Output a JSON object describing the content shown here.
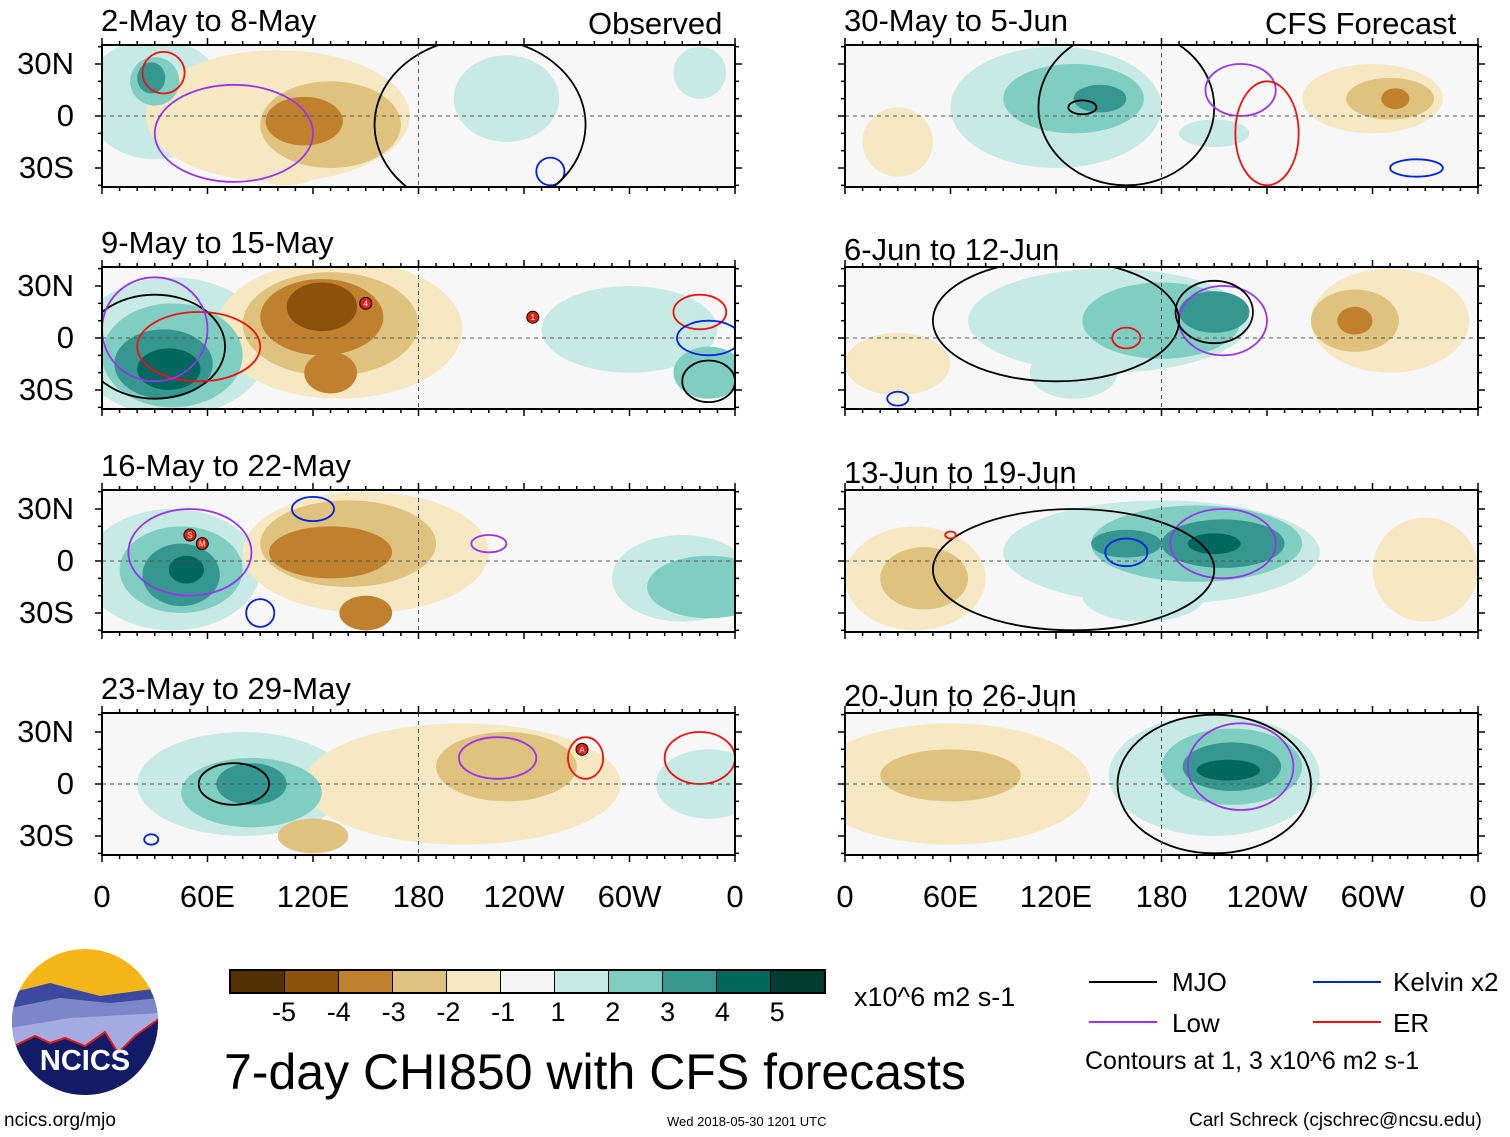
{
  "headers": {
    "observed": "Observed",
    "forecast": "CFS Forecast"
  },
  "lat_labels": [
    "30N",
    "0",
    "30S"
  ],
  "lon_labels": [
    "0",
    "60E",
    "120E",
    "180",
    "120W",
    "60W",
    "0"
  ],
  "panels": [
    {
      "title": "2-May to 8-May",
      "features": [
        [
          30,
          10,
          40,
          35,
          1
        ],
        [
          100,
          0,
          75,
          38,
          -1
        ],
        [
          130,
          -5,
          40,
          25,
          -2
        ],
        [
          115,
          -3,
          22,
          14,
          -3
        ],
        [
          30,
          20,
          14,
          14,
          2
        ],
        [
          28,
          22,
          8,
          9,
          3
        ],
        [
          230,
          10,
          30,
          25,
          1
        ],
        [
          340,
          25,
          15,
          15,
          1
        ],
        [
          105,
          -30,
          20,
          10,
          -1
        ]
      ],
      "contours": [
        [
          75,
          -10,
          45,
          28,
          "low"
        ],
        [
          35,
          25,
          12,
          12,
          "er"
        ],
        [
          255,
          -32,
          8,
          8,
          "kelvin"
        ],
        [
          215,
          -5,
          60,
          50,
          "mjo"
        ]
      ],
      "storms": []
    },
    {
      "title": "9-May to 15-May",
      "features": [
        [
          40,
          -5,
          55,
          40,
          1
        ],
        [
          40,
          -10,
          40,
          30,
          2
        ],
        [
          35,
          -15,
          28,
          20,
          3
        ],
        [
          38,
          -18,
          18,
          12,
          4
        ],
        [
          135,
          5,
          70,
          40,
          -1
        ],
        [
          130,
          8,
          50,
          30,
          -2
        ],
        [
          125,
          12,
          35,
          22,
          -3
        ],
        [
          125,
          18,
          20,
          14,
          -4
        ],
        [
          130,
          -20,
          15,
          12,
          -3
        ],
        [
          300,
          5,
          50,
          25,
          1
        ],
        [
          345,
          -20,
          20,
          15,
          2
        ]
      ],
      "contours": [
        [
          30,
          -5,
          40,
          30,
          "mjo"
        ],
        [
          55,
          -5,
          35,
          20,
          "er"
        ],
        [
          30,
          5,
          30,
          30,
          "low"
        ],
        [
          340,
          15,
          15,
          10,
          "er"
        ],
        [
          345,
          0,
          18,
          10,
          "kelvin"
        ],
        [
          345,
          -25,
          15,
          12,
          "mjo"
        ]
      ],
      "storms": [
        [
          150,
          20,
          "4"
        ],
        [
          245,
          12,
          "1"
        ]
      ]
    },
    {
      "title": "16-May to 22-May",
      "features": [
        [
          40,
          -5,
          50,
          35,
          1
        ],
        [
          45,
          -5,
          35,
          25,
          2
        ],
        [
          45,
          -8,
          22,
          18,
          3
        ],
        [
          48,
          -5,
          10,
          8,
          4
        ],
        [
          150,
          5,
          70,
          35,
          -1
        ],
        [
          140,
          10,
          50,
          25,
          -2
        ],
        [
          130,
          5,
          35,
          15,
          -3
        ],
        [
          345,
          -15,
          35,
          18,
          2
        ],
        [
          330,
          -10,
          40,
          25,
          1
        ],
        [
          150,
          -30,
          15,
          10,
          -3
        ]
      ],
      "contours": [
        [
          50,
          5,
          35,
          25,
          "low"
        ],
        [
          90,
          -30,
          8,
          8,
          "kelvin"
        ],
        [
          120,
          30,
          12,
          7,
          "kelvin"
        ],
        [
          220,
          10,
          10,
          5,
          "low"
        ]
      ],
      "storms": [
        [
          50,
          15,
          "S"
        ],
        [
          57,
          10,
          "M"
        ]
      ]
    },
    {
      "title": "23-May to 29-May",
      "features": [
        [
          80,
          0,
          60,
          30,
          1
        ],
        [
          85,
          -5,
          40,
          20,
          2
        ],
        [
          85,
          0,
          20,
          12,
          3
        ],
        [
          205,
          0,
          90,
          35,
          -1
        ],
        [
          230,
          10,
          40,
          20,
          -2
        ],
        [
          120,
          -30,
          20,
          10,
          -2
        ],
        [
          345,
          0,
          30,
          20,
          1
        ]
      ],
      "contours": [
        [
          75,
          0,
          20,
          12,
          "mjo"
        ],
        [
          225,
          15,
          22,
          12,
          "low"
        ],
        [
          340,
          15,
          20,
          15,
          "er"
        ],
        [
          275,
          15,
          10,
          12,
          "er"
        ],
        [
          28,
          -32,
          4,
          3,
          "kelvin"
        ]
      ],
      "storms": [
        [
          273,
          20,
          "A"
        ]
      ]
    },
    {
      "title": "30-May to 5-Jun",
      "features": [
        [
          120,
          5,
          60,
          35,
          1
        ],
        [
          130,
          10,
          40,
          20,
          2
        ],
        [
          145,
          10,
          15,
          8,
          3
        ],
        [
          300,
          10,
          40,
          20,
          -1
        ],
        [
          310,
          10,
          25,
          12,
          -2
        ],
        [
          313,
          10,
          8,
          6,
          -3
        ],
        [
          210,
          -10,
          20,
          8,
          1
        ],
        [
          30,
          -15,
          20,
          20,
          -1
        ]
      ],
      "contours": [
        [
          160,
          5,
          50,
          45,
          "mjo"
        ],
        [
          225,
          15,
          20,
          15,
          "low"
        ],
        [
          240,
          -10,
          18,
          30,
          "er"
        ],
        [
          325,
          -30,
          15,
          5,
          "kelvin"
        ],
        [
          135,
          5,
          8,
          4,
          "mjo"
        ]
      ],
      "storms": []
    },
    {
      "title": "6-Jun to 12-Jun",
      "features": [
        [
          150,
          10,
          80,
          30,
          1
        ],
        [
          180,
          10,
          45,
          22,
          2
        ],
        [
          210,
          15,
          20,
          12,
          3
        ],
        [
          310,
          10,
          45,
          30,
          -1
        ],
        [
          290,
          10,
          25,
          18,
          -2
        ],
        [
          290,
          10,
          10,
          8,
          -3
        ],
        [
          30,
          -15,
          30,
          18,
          -1
        ],
        [
          130,
          -20,
          25,
          15,
          1
        ]
      ],
      "contours": [
        [
          215,
          10,
          25,
          20,
          "low"
        ],
        [
          210,
          15,
          22,
          18,
          "mjo"
        ],
        [
          160,
          0,
          8,
          6,
          "er"
        ],
        [
          30,
          -35,
          6,
          4,
          "kelvin"
        ],
        [
          120,
          10,
          70,
          35,
          "mjo"
        ]
      ],
      "storms": []
    },
    {
      "title": "13-Jun to 19-Jun",
      "features": [
        [
          180,
          5,
          90,
          30,
          1
        ],
        [
          200,
          10,
          60,
          22,
          2
        ],
        [
          215,
          10,
          35,
          14,
          3
        ],
        [
          210,
          10,
          15,
          6,
          4
        ],
        [
          160,
          10,
          20,
          8,
          3
        ],
        [
          40,
          -10,
          40,
          30,
          -1
        ],
        [
          45,
          -10,
          25,
          18,
          -2
        ],
        [
          330,
          -5,
          30,
          30,
          -1
        ],
        [
          170,
          -20,
          35,
          15,
          1
        ]
      ],
      "contours": [
        [
          215,
          10,
          30,
          20,
          "low"
        ],
        [
          160,
          5,
          12,
          8,
          "kelvin"
        ],
        [
          130,
          -5,
          80,
          35,
          "mjo"
        ],
        [
          60,
          15,
          3,
          2,
          "er"
        ]
      ],
      "storms": []
    },
    {
      "title": "20-Jun to 26-Jun",
      "features": [
        [
          210,
          5,
          60,
          35,
          1
        ],
        [
          220,
          10,
          40,
          22,
          2
        ],
        [
          220,
          10,
          28,
          14,
          3
        ],
        [
          218,
          8,
          18,
          6,
          4
        ],
        [
          60,
          0,
          80,
          35,
          -1
        ],
        [
          60,
          5,
          40,
          15,
          -2
        ]
      ],
      "contours": [
        [
          225,
          10,
          30,
          25,
          "low"
        ],
        [
          210,
          0,
          55,
          40,
          "mjo"
        ]
      ],
      "storms": []
    }
  ],
  "colorbar": {
    "colors": [
      "#543005",
      "#8c510a",
      "#bf812d",
      "#dfc27d",
      "#f6e8c3",
      "#f5f5f5",
      "#c7eae5",
      "#80cdc1",
      "#35978f",
      "#01665e",
      "#003c30"
    ],
    "labels": [
      "-5",
      "-4",
      "-3",
      "-2",
      "-1",
      "1",
      "2",
      "3",
      "4",
      "5"
    ],
    "units": "x10^6 m2 s-1"
  },
  "legend": {
    "mjo": "MJO",
    "low": "Low",
    "kelvin": "Kelvin x2",
    "er": "ER",
    "note": "Contours at 1, 3 x10^6 m2 s-1",
    "colors": {
      "mjo": "#000000",
      "low": "#9933ee",
      "kelvin": "#0022dd",
      "er": "#ee1111"
    }
  },
  "title": "7-day CHI850 with CFS forecasts",
  "logo": {
    "text": "NCICS"
  },
  "url": "ncics.org/mjo",
  "timestamp": "Wed 2018-05-30 1201 UTC",
  "credit": "Carl Schreck (cjschrec@ncsu.edu)"
}
